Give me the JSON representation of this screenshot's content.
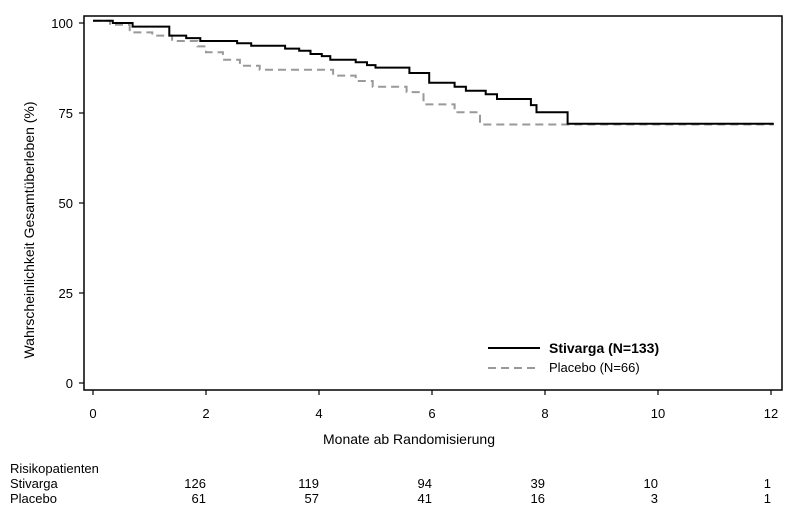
{
  "chart_data": {
    "type": "line",
    "step": true,
    "ylabel": "Wahrscheinlichkeit Gesamtüberleben (%)",
    "xlabel": "Monate ab Randomisierung",
    "xlim": [
      0,
      12
    ],
    "ylim": [
      0,
      100
    ],
    "xticks": [
      0,
      2,
      4,
      6,
      8,
      10,
      12
    ],
    "yticks": [
      0,
      25,
      50,
      75,
      100
    ],
    "grid": false,
    "legend_position": "bottom-right",
    "series": [
      {
        "name": "Stivarga",
        "legend_name": "Stivarga",
        "legend_n": " (N=133)",
        "style": "solid",
        "color": "#000000",
        "points": [
          [
            0,
            100.6
          ],
          [
            0.35,
            100.6
          ],
          [
            0.35,
            100
          ],
          [
            0.7,
            100
          ],
          [
            0.7,
            99
          ],
          [
            1.35,
            99
          ],
          [
            1.35,
            96.5
          ],
          [
            1.65,
            96.5
          ],
          [
            1.65,
            95.8
          ],
          [
            1.9,
            95.8
          ],
          [
            1.9,
            95
          ],
          [
            2.55,
            95
          ],
          [
            2.55,
            94.4
          ],
          [
            2.8,
            94.4
          ],
          [
            2.8,
            93.7
          ],
          [
            3.4,
            93.7
          ],
          [
            3.4,
            92.9
          ],
          [
            3.65,
            92.9
          ],
          [
            3.65,
            92.3
          ],
          [
            3.85,
            92.3
          ],
          [
            3.85,
            91.4
          ],
          [
            4.05,
            91.4
          ],
          [
            4.05,
            90.8
          ],
          [
            4.2,
            90.8
          ],
          [
            4.2,
            89.8
          ],
          [
            4.65,
            89.8
          ],
          [
            4.65,
            89.1
          ],
          [
            4.85,
            89.1
          ],
          [
            4.85,
            88.3
          ],
          [
            5,
            88.3
          ],
          [
            5,
            87.6
          ],
          [
            5.6,
            87.6
          ],
          [
            5.6,
            86.1
          ],
          [
            5.95,
            86.1
          ],
          [
            5.95,
            83.4
          ],
          [
            6.4,
            83.4
          ],
          [
            6.4,
            82.3
          ],
          [
            6.6,
            82.3
          ],
          [
            6.6,
            81.2
          ],
          [
            6.95,
            81.2
          ],
          [
            6.95,
            80.2
          ],
          [
            7.15,
            80.2
          ],
          [
            7.15,
            78.9
          ],
          [
            7.75,
            78.9
          ],
          [
            7.75,
            77.2
          ],
          [
            7.85,
            77.2
          ],
          [
            7.85,
            75.2
          ],
          [
            8.4,
            75.2
          ],
          [
            8.4,
            72
          ],
          [
            12.05,
            72
          ]
        ]
      },
      {
        "name": "Placebo",
        "legend_name": "Placebo",
        "legend_n": " (N=66)",
        "style": "dashed",
        "color": "#999999",
        "points": [
          [
            0,
            100.6
          ],
          [
            0.3,
            100.6
          ],
          [
            0.3,
            99.5
          ],
          [
            0.65,
            99.5
          ],
          [
            0.65,
            97.4
          ],
          [
            1.05,
            97.4
          ],
          [
            1.05,
            96.5
          ],
          [
            1.4,
            96.5
          ],
          [
            1.4,
            95
          ],
          [
            1.85,
            95
          ],
          [
            1.85,
            93.5
          ],
          [
            2,
            93.5
          ],
          [
            2,
            91.9
          ],
          [
            2.3,
            91.9
          ],
          [
            2.3,
            89.8
          ],
          [
            2.6,
            89.8
          ],
          [
            2.6,
            88.1
          ],
          [
            2.95,
            88.1
          ],
          [
            2.95,
            87
          ],
          [
            4.25,
            87
          ],
          [
            4.25,
            85.4
          ],
          [
            4.65,
            85.4
          ],
          [
            4.65,
            83.9
          ],
          [
            4.95,
            83.9
          ],
          [
            4.95,
            82.3
          ],
          [
            5.55,
            82.3
          ],
          [
            5.55,
            80.8
          ],
          [
            5.85,
            80.8
          ],
          [
            5.85,
            77.4
          ],
          [
            6.4,
            77.4
          ],
          [
            6.4,
            75.2
          ],
          [
            6.85,
            75.2
          ],
          [
            6.85,
            71.8
          ],
          [
            12.05,
            71.8
          ]
        ]
      }
    ],
    "risk_table": {
      "title": "Risikopatienten",
      "rows": [
        {
          "label": "Stivarga",
          "values": [
            "126",
            "119",
            "94",
            "39",
            "10",
            "1"
          ]
        },
        {
          "label": "Placebo",
          "values": [
            "61",
            "57",
            "41",
            "16",
            "3",
            "1"
          ]
        }
      ],
      "at_x": [
        2,
        4,
        6,
        8,
        10,
        12
      ]
    }
  }
}
